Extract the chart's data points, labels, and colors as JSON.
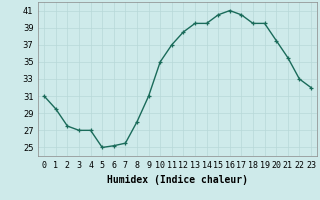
{
  "x": [
    0,
    1,
    2,
    3,
    4,
    5,
    6,
    7,
    8,
    9,
    10,
    11,
    12,
    13,
    14,
    15,
    16,
    17,
    18,
    19,
    20,
    21,
    22,
    23
  ],
  "y": [
    31,
    29.5,
    27.5,
    27,
    27,
    25,
    25.2,
    25.5,
    28,
    31,
    35,
    37,
    38.5,
    39.5,
    39.5,
    40.5,
    41,
    40.5,
    39.5,
    39.5,
    37.5,
    35.5,
    33,
    32
  ],
  "line_color": "#1a6b5a",
  "marker": "+",
  "markersize": 3,
  "linewidth": 1.0,
  "markeredgewidth": 0.9,
  "xlabel": "Humidex (Indice chaleur)",
  "xlim": [
    -0.5,
    23.5
  ],
  "ylim": [
    24,
    42
  ],
  "yticks": [
    25,
    27,
    29,
    31,
    33,
    35,
    37,
    39,
    41
  ],
  "xticks": [
    0,
    1,
    2,
    3,
    4,
    5,
    6,
    7,
    8,
    9,
    10,
    11,
    12,
    13,
    14,
    15,
    16,
    17,
    18,
    19,
    20,
    21,
    22,
    23
  ],
  "xtick_labels": [
    "0",
    "1",
    "2",
    "3",
    "4",
    "5",
    "6",
    "7",
    "8",
    "9",
    "10",
    "11",
    "12",
    "13",
    "14",
    "15",
    "16",
    "17",
    "18",
    "19",
    "20",
    "21",
    "22",
    "23"
  ],
  "bg_color": "#ceeaea",
  "grid_color": "#b8d8d8",
  "grid_linewidth": 0.5,
  "xlabel_fontsize": 7,
  "tick_fontsize": 6,
  "spine_color": "#888888"
}
